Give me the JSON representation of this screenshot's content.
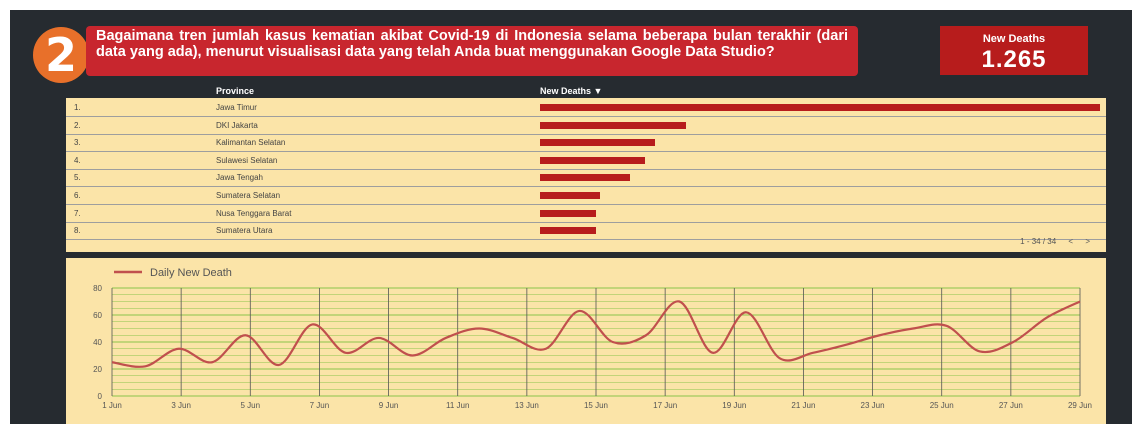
{
  "header": {
    "step_number": "2",
    "question": "Bagaimana tren jumlah kasus kematian akibat Covid-19 di Indonesia selama beberapa bulan terakhir (dari data yang ada), menurut visualisasi data yang telah Anda buat menggunakan Google Data Studio?"
  },
  "kpi": {
    "label": "New Deaths",
    "value": "1.265"
  },
  "colors": {
    "accent": "#b71c1c",
    "panel_bg": "#fbe4a8",
    "frame_bg": "#262b30",
    "badge": "#e8702a",
    "line": "#c0504d",
    "grid": "#8bc34a"
  },
  "table": {
    "columns": [
      "Province",
      "New Deaths ▼"
    ],
    "rows": [
      {
        "index": "1.",
        "province": "Jawa Timur",
        "value_fraction": 1.0
      },
      {
        "index": "2.",
        "province": "DKI Jakarta",
        "value_fraction": 0.26
      },
      {
        "index": "3.",
        "province": "Kalimantan Selatan",
        "value_fraction": 0.205
      },
      {
        "index": "4.",
        "province": "Sulawesi Selatan",
        "value_fraction": 0.188
      },
      {
        "index": "5.",
        "province": "Jawa Tengah",
        "value_fraction": 0.16
      },
      {
        "index": "6.",
        "province": "Sumatera Selatan",
        "value_fraction": 0.107
      },
      {
        "index": "7.",
        "province": "Nusa Tenggara Barat",
        "value_fraction": 0.1
      },
      {
        "index": "8.",
        "province": "Sumatera Utara",
        "value_fraction": 0.1
      }
    ],
    "pagination": {
      "range": "1 - 34 / 34",
      "prev_icon": "chevron-left-icon",
      "next_icon": "chevron-right-icon"
    }
  },
  "chart_data": {
    "type": "line",
    "series": [
      {
        "name": "Daily New Death",
        "values": [
          25,
          22,
          35,
          25,
          45,
          23,
          53,
          32,
          43,
          30,
          43,
          50,
          43,
          35,
          63,
          40,
          45,
          70,
          32,
          62,
          28,
          32,
          38,
          45,
          50,
          52,
          33,
          40,
          58,
          70
        ]
      }
    ],
    "x_ticks": [
      "1 Jun",
      "3 Jun",
      "5 Jun",
      "7 Jun",
      "9 Jun",
      "11 Jun",
      "13 Jun",
      "15 Jun",
      "17 Jun",
      "19 Jun",
      "21 Jun",
      "23 Jun",
      "25 Jun",
      "27 Jun",
      "29 Jun"
    ],
    "y_ticks": [
      "0",
      "20",
      "40",
      "60",
      "80"
    ],
    "ylim": [
      0,
      80
    ],
    "grid": true,
    "legend_position": "top-left"
  }
}
